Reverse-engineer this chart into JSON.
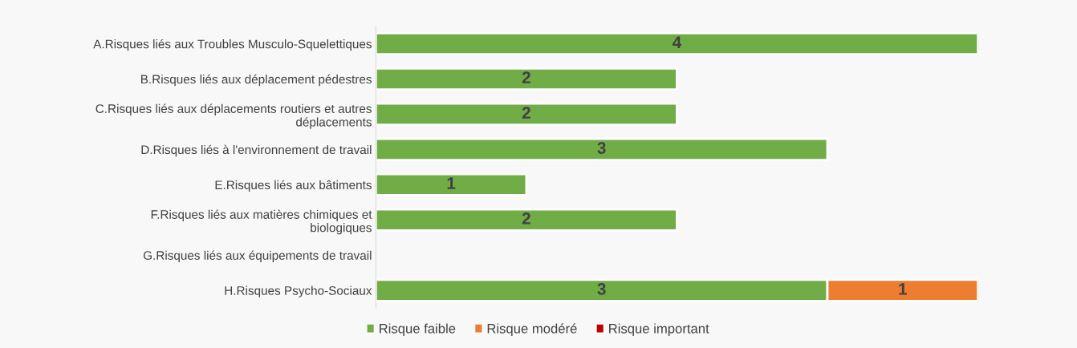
{
  "chart_data": {
    "type": "bar",
    "orientation": "horizontal",
    "stacked": true,
    "data_labels": true,
    "legend": "bottom",
    "grid": false,
    "tick_labels": "y",
    "xlim": [
      0,
      4
    ],
    "categories": [
      "A.Risques liés aux Troubles Musculo-Squelettiques",
      "B.Risques liés aux déplacement pédestres",
      "C.Risques liés aux déplacements routiers et autres déplacements",
      "D.Risques liés à l'environnement de travail",
      "E.Risques liés aux bâtiments",
      "F.Risques liés aux matières chimiques et biologiques",
      "G.Risques liés aux équipements de travail",
      "H.Risques Psycho-Sociaux"
    ],
    "series": [
      {
        "name": "Risque faible",
        "color": "#70ad47",
        "values": [
          4,
          2,
          2,
          3,
          1,
          2,
          null,
          3
        ]
      },
      {
        "name": "Risque modéré",
        "color": "#ed7d31",
        "values": [
          null,
          null,
          null,
          null,
          null,
          null,
          null,
          1
        ]
      },
      {
        "name": "Risque important",
        "color": "#c00000",
        "values": [
          null,
          null,
          null,
          null,
          null,
          null,
          null,
          null
        ]
      }
    ]
  }
}
